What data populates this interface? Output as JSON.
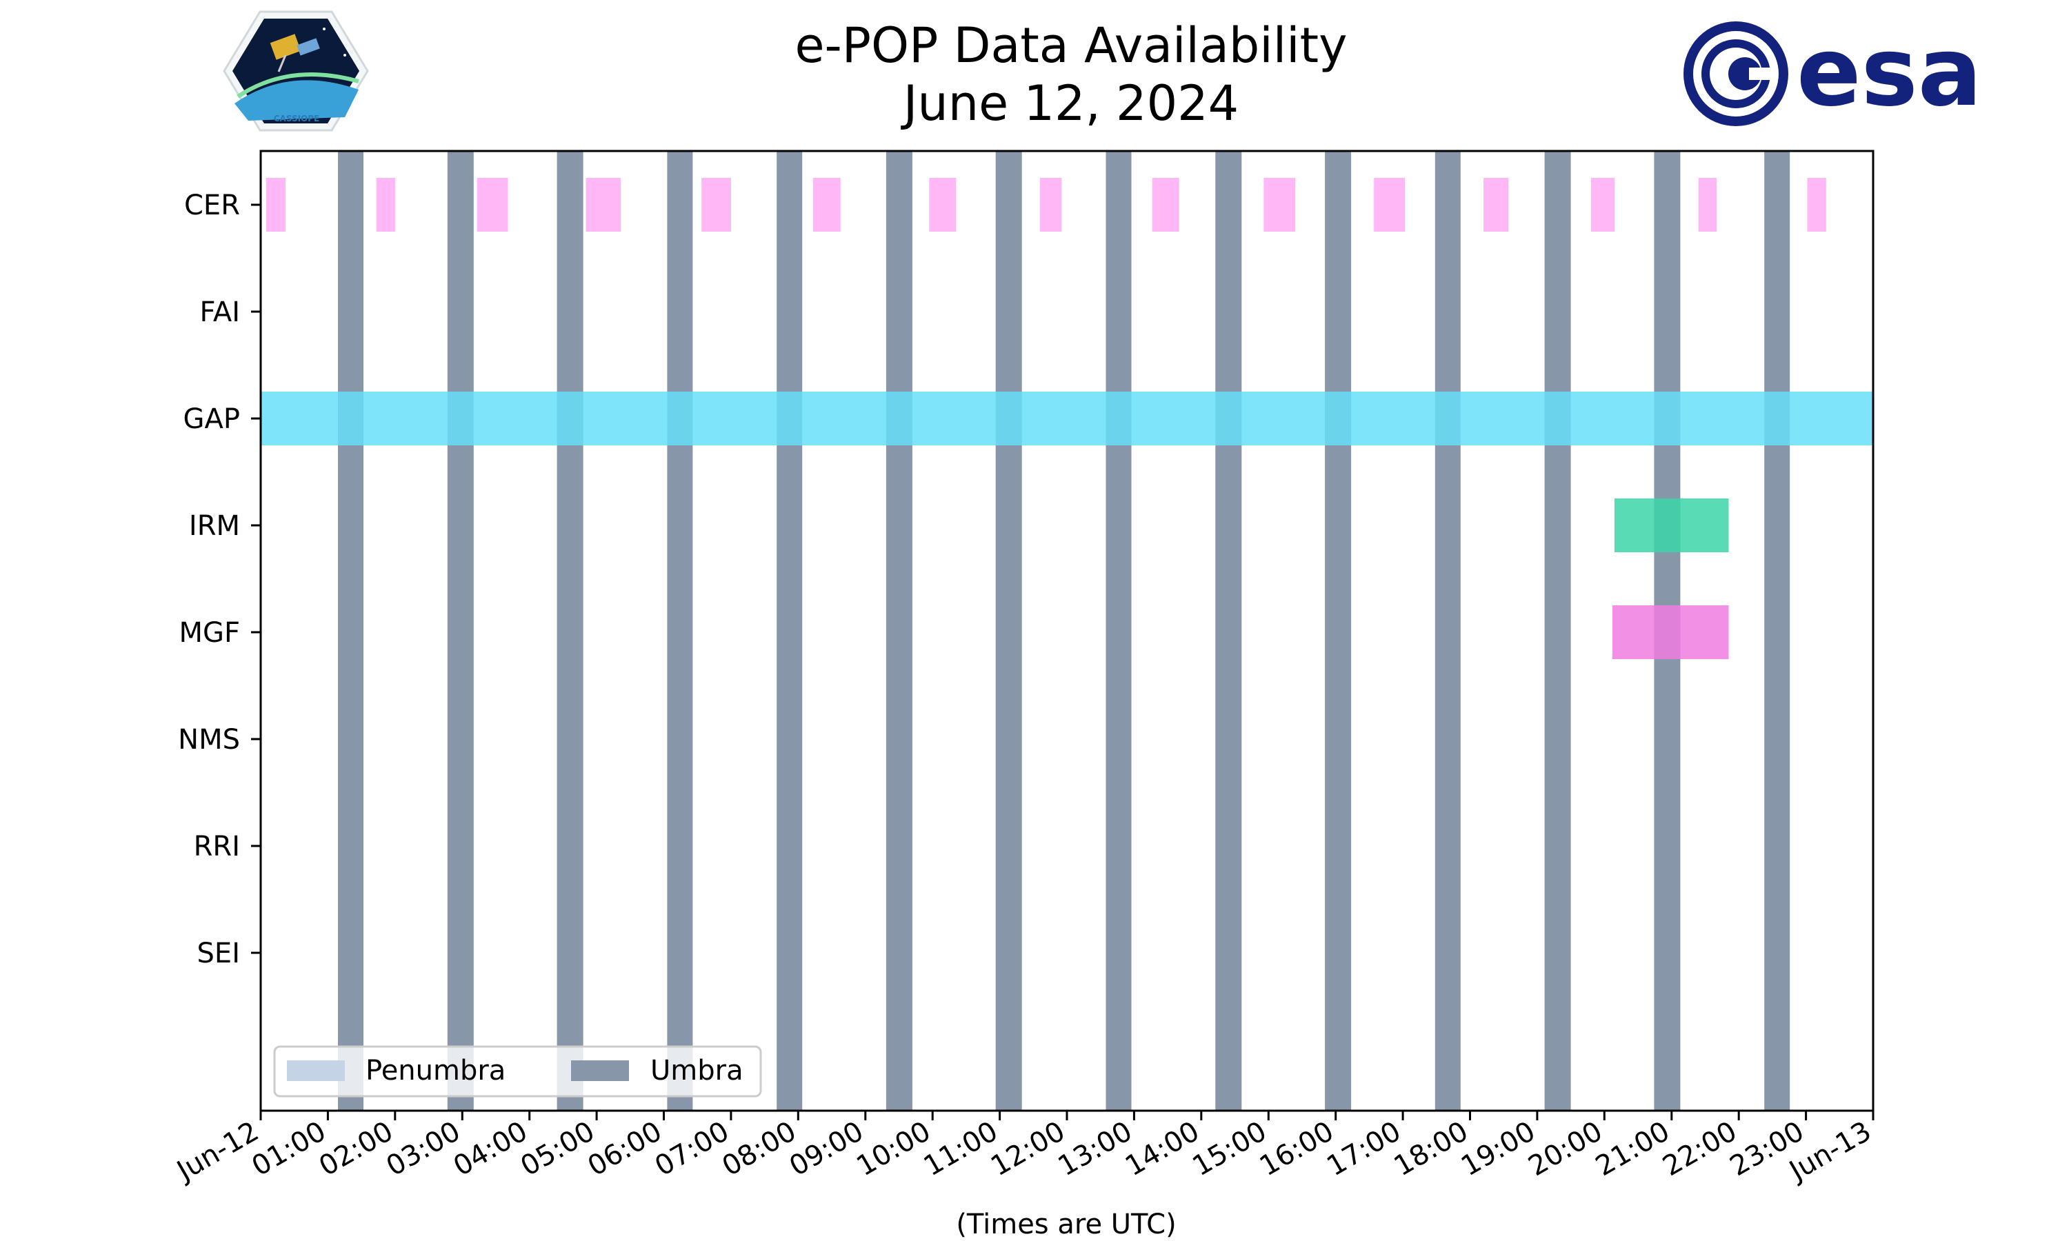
{
  "chart_data": {
    "type": "timeline",
    "title": "e-POP Data Availability",
    "subtitle": "June 12, 2024",
    "xlabel": "(Times are UTC)",
    "ylabel": "",
    "x_range_hours": [
      0,
      24
    ],
    "x_tick_labels": [
      "Jun-12",
      "01:00",
      "02:00",
      "03:00",
      "04:00",
      "05:00",
      "06:00",
      "07:00",
      "08:00",
      "09:00",
      "10:00",
      "11:00",
      "12:00",
      "13:00",
      "14:00",
      "15:00",
      "16:00",
      "17:00",
      "18:00",
      "19:00",
      "20:00",
      "21:00",
      "22:00",
      "23:00",
      "Jun-13"
    ],
    "instruments": [
      "CER",
      "FAI",
      "GAP",
      "IRM",
      "MGF",
      "NMS",
      "RRI",
      "SEI"
    ],
    "colors": {
      "CER": "#ffaaf5",
      "GAP": "#66dff8",
      "IRM": "#3cd6a8",
      "MGF": "#f07ce0",
      "umbra": "#8796a8",
      "penumbra": "#c5d3e6"
    },
    "legend": {
      "position": "lower-left",
      "entries": [
        {
          "label": "Penumbra",
          "color": "#c5d3e6"
        },
        {
          "label": "Umbra",
          "color": "#8796a8"
        }
      ]
    },
    "umbra_intervals_hours": [
      [
        1.15,
        1.53
      ],
      [
        2.78,
        3.17
      ],
      [
        4.41,
        4.8
      ],
      [
        6.05,
        6.43
      ],
      [
        7.68,
        8.06
      ],
      [
        9.31,
        9.7
      ],
      [
        10.94,
        11.33
      ],
      [
        12.58,
        12.96
      ],
      [
        14.21,
        14.6
      ],
      [
        15.84,
        16.23
      ],
      [
        17.48,
        17.86
      ],
      [
        19.11,
        19.5
      ],
      [
        20.74,
        21.13
      ],
      [
        22.38,
        22.76
      ]
    ],
    "data_intervals_hours": {
      "CER": [
        [
          0.08,
          0.37
        ],
        [
          1.72,
          2.0
        ],
        [
          3.22,
          3.68
        ],
        [
          4.84,
          5.36
        ],
        [
          6.56,
          7.0
        ],
        [
          8.22,
          8.63
        ],
        [
          9.95,
          10.35
        ],
        [
          11.6,
          11.92
        ],
        [
          13.27,
          13.67
        ],
        [
          14.93,
          15.4
        ],
        [
          16.57,
          17.03
        ],
        [
          18.2,
          18.57
        ],
        [
          19.8,
          20.15
        ],
        [
          21.4,
          21.67
        ],
        [
          23.02,
          23.3
        ]
      ],
      "FAI": [],
      "GAP": [
        [
          0.0,
          24.0
        ]
      ],
      "IRM": [
        [
          20.15,
          21.85
        ]
      ],
      "MGF": [
        [
          20.12,
          21.85
        ]
      ],
      "NMS": [],
      "RRI": [],
      "SEI": []
    }
  },
  "logos": {
    "left_caption": "CASSIOPE",
    "right_text": "esa",
    "right_color": "#13237d"
  }
}
